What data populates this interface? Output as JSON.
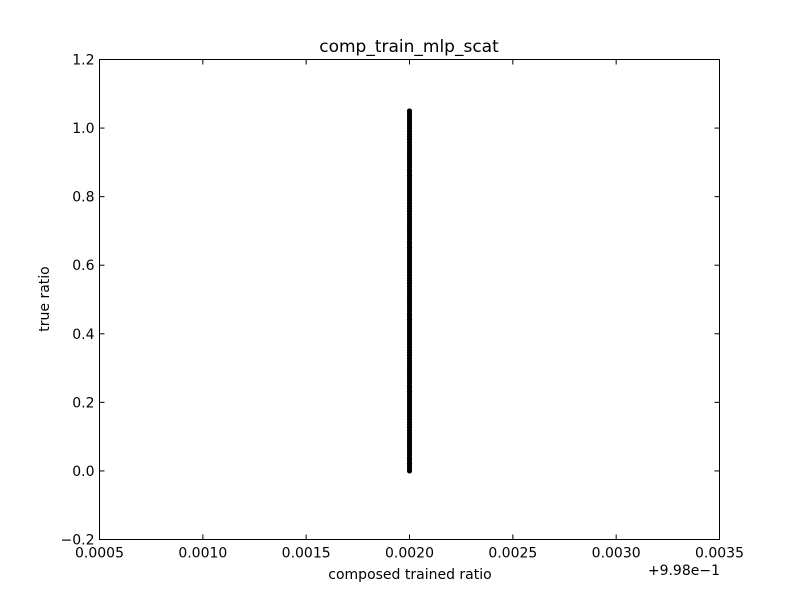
{
  "chart_data": {
    "type": "scatter",
    "title": "comp_train_mlp_scat",
    "xlabel": "composed trained ratio",
    "ylabel": "true ratio",
    "x_offset_label": "+9.98e−1",
    "xlim": [
      0.0005,
      0.0035
    ],
    "ylim": [
      -0.2,
      1.2
    ],
    "x_ticks": [
      0.0005,
      0.001,
      0.0015,
      0.002,
      0.0025,
      0.003,
      0.0035
    ],
    "x_tick_labels": [
      "0.0005",
      "0.0010",
      "0.0015",
      "0.0020",
      "0.0025",
      "0.0030",
      "0.0035"
    ],
    "y_ticks": [
      -0.2,
      0.0,
      0.2,
      0.4,
      0.6,
      0.8,
      1.0,
      1.2
    ],
    "y_tick_labels": [
      "−0.2",
      "0.0",
      "0.2",
      "0.4",
      "0.6",
      "0.8",
      "1.0",
      "1.2"
    ],
    "grid": false,
    "series": [
      {
        "marker_color": "#000000",
        "points": {
          "x": 0.002,
          "y_min": 0.0,
          "y_max": 1.05
        }
      }
    ],
    "colors": {
      "marker": "#000000",
      "axes": "#000000",
      "background": "#ffffff"
    }
  }
}
